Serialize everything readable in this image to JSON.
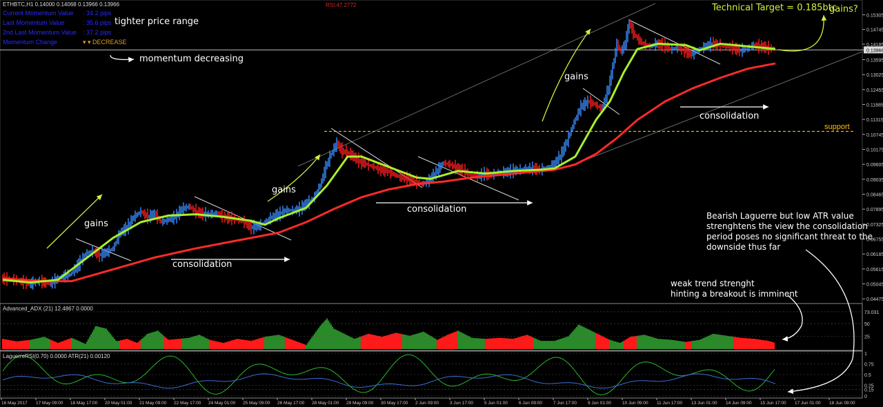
{
  "header": {
    "symbol_line": "ETHBTC,H1  0.14000 0.14068 0.13966 0.13966",
    "rsi_label": "RSI:47.2772"
  },
  "momentum_panel": [
    {
      "label": "Current Momentum Value",
      "value": ": 34.2 pips"
    },
    {
      "label": "Last Momentum Value",
      "value": ": 35.6 pips"
    },
    {
      "label": "2nd Last Momentum Value",
      "value": ": 37.2 pips"
    },
    {
      "label": "Momentum Change",
      "value": "▾ ▾  DECREASE"
    }
  ],
  "annotations": {
    "tighter_range": "tighter price range",
    "momentum_decreasing": "momentum decreasing",
    "gains_1": "gains",
    "gains_2": "gains",
    "gains_3": "gains",
    "gains_q": "gains?",
    "consolidation_1": "consolidation",
    "consolidation_2": "consolidation",
    "consolidation_3": "consolidation",
    "support": "support",
    "technical_target": "Technical Target = 0.185btc",
    "bearish_note_1": "Bearish Laguerre but low ATR value",
    "bearish_note_2": "strenghtens the view the consolidation",
    "bearish_note_3": "period poses no significant threat to the",
    "bearish_note_4": "downside thus far",
    "weak_trend_1": "weak trend strenght",
    "weak_trend_2": "hinting a breakout is imminent"
  },
  "colors": {
    "background": "#000000",
    "candle_up": "#3a8cff",
    "candle_down": "#ff2020",
    "fast_ma": "#a8f02c",
    "slow_ma": "#ff2a2a",
    "annotation_yellow": "#d8f03a",
    "support_line": "#ffc000",
    "adx_bull": "#2a8a2a",
    "adx_bear": "#ff1a1a",
    "laguerre": "#2ab82a",
    "atr": "#3a6fd8"
  },
  "chart_data": [
    {
      "type": "line",
      "title": "ETHBTC,H1",
      "price_ticks": [
        "0.15305",
        "0.14745",
        "0.14185",
        "0.13966",
        "0.13595",
        "0.13025",
        "0.12455",
        "0.11885",
        "0.11315",
        "0.10745",
        "0.10175",
        "0.09605",
        "0.09035",
        "0.08465",
        "0.07895",
        "0.07325",
        "0.06755",
        "0.06185",
        "0.05615",
        "0.05045",
        "0.04475"
      ],
      "ylim": [
        0.0435,
        0.155
      ],
      "current_price": 0.13966,
      "support_level": 0.1086,
      "x_labels": [
        "16 May 2017",
        "17 May 09:00",
        "18 May 17:00",
        "20 May 01:00",
        "21 May 09:00",
        "22 May 17:00",
        "24 May 01:00",
        "25 May 09:00",
        "26 May 17:00",
        "28 May 01:00",
        "29 May 09:00",
        "30 May 17:00",
        "2 Jun 09:00",
        "3 Jun 17:00",
        "5 Jun 01:00",
        "6 Jun 09:00",
        "7 Jun 17:00",
        "9 Jun 01:00",
        "10 Jun 09:00",
        "11 Jun 17:00",
        "13 Jun 01:00",
        "14 Jun 09:00",
        "15 Jun 17:00",
        "17 Jun 01:00",
        "18 Jun 09:00"
      ],
      "series": [
        {
          "name": "price",
          "x": [
            0,
            20,
            40,
            55,
            70,
            85,
            100,
            112,
            122,
            132,
            142,
            152,
            162,
            172,
            182,
            192,
            202,
            212,
            222,
            232,
            242,
            252,
            262,
            272,
            282,
            292,
            302,
            312,
            322,
            332,
            342,
            352,
            362,
            372,
            382,
            392,
            402,
            412,
            422,
            432,
            442,
            452,
            462,
            470,
            478,
            486,
            494,
            502,
            510,
            520,
            530,
            540,
            550,
            560,
            570,
            580,
            590,
            600,
            610,
            620,
            630,
            640,
            650,
            660,
            670,
            680,
            690,
            700,
            710,
            720,
            730,
            740,
            750,
            760,
            770,
            780,
            790,
            800,
            810,
            820,
            830,
            840,
            850,
            860,
            870,
            880,
            886,
            892,
            898,
            904,
            910,
            916,
            922,
            930,
            940,
            950,
            960,
            970,
            980,
            990,
            1000,
            1010,
            1020,
            1030,
            1040,
            1050,
            1060,
            1070,
            1080,
            1090,
            1100,
            1110,
            1120
          ],
          "values": [
            0.0525,
            0.052,
            0.0505,
            0.0515,
            0.0505,
            0.053,
            0.054,
            0.058,
            0.062,
            0.063,
            0.0615,
            0.0625,
            0.064,
            0.07,
            0.072,
            0.076,
            0.078,
            0.076,
            0.077,
            0.074,
            0.075,
            0.076,
            0.079,
            0.08,
            0.078,
            0.077,
            0.077,
            0.0775,
            0.076,
            0.0755,
            0.075,
            0.074,
            0.072,
            0.0725,
            0.074,
            0.076,
            0.077,
            0.0785,
            0.0785,
            0.079,
            0.081,
            0.083,
            0.088,
            0.095,
            0.1,
            0.104,
            0.101,
            0.1005,
            0.099,
            0.097,
            0.096,
            0.095,
            0.094,
            0.0935,
            0.092,
            0.091,
            0.0905,
            0.0895,
            0.0885,
            0.09,
            0.093,
            0.0965,
            0.096,
            0.0945,
            0.0935,
            0.092,
            0.0915,
            0.0925,
            0.092,
            0.093,
            0.093,
            0.0935,
            0.094,
            0.0945,
            0.0945,
            0.094,
            0.0945,
            0.096,
            0.099,
            0.105,
            0.112,
            0.118,
            0.12,
            0.119,
            0.117,
            0.125,
            0.133,
            0.142,
            0.139,
            0.142,
            0.15,
            0.146,
            0.144,
            0.142,
            0.141,
            0.142,
            0.1415,
            0.14,
            0.1405,
            0.1395,
            0.138,
            0.1395,
            0.141,
            0.142,
            0.1415,
            0.141,
            0.1405,
            0.1395,
            0.14,
            0.1415,
            0.141,
            0.1405,
            0.14
          ]
        },
        {
          "name": "fast_ma",
          "x": [
            0,
            40,
            80,
            120,
            160,
            200,
            240,
            280,
            320,
            360,
            380,
            400,
            440,
            470,
            500,
            520,
            560,
            600,
            620,
            660,
            700,
            740,
            780,
            800,
            830,
            860,
            880,
            900,
            920,
            950,
            990,
            1010,
            1040,
            1080,
            1120
          ],
          "values": [
            0.052,
            0.051,
            0.052,
            0.06,
            0.068,
            0.074,
            0.0765,
            0.077,
            0.076,
            0.0745,
            0.073,
            0.0755,
            0.0795,
            0.088,
            0.099,
            0.099,
            0.095,
            0.091,
            0.0905,
            0.0935,
            0.0925,
            0.0935,
            0.094,
            0.0945,
            0.099,
            0.113,
            0.12,
            0.131,
            0.14,
            0.142,
            0.1415,
            0.1395,
            0.142,
            0.141,
            0.14
          ]
        },
        {
          "name": "slow_ma",
          "x": [
            0,
            60,
            100,
            160,
            220,
            280,
            340,
            400,
            440,
            480,
            520,
            560,
            600,
            640,
            680,
            720,
            760,
            800,
            830,
            860,
            890,
            920,
            960,
            1000,
            1040,
            1080,
            1120
          ],
          "values": [
            0.0525,
            0.0515,
            0.0515,
            0.056,
            0.0605,
            0.064,
            0.067,
            0.07,
            0.074,
            0.079,
            0.0835,
            0.0865,
            0.0885,
            0.0895,
            0.091,
            0.092,
            0.093,
            0.094,
            0.096,
            0.1,
            0.106,
            0.113,
            0.12,
            0.125,
            0.129,
            0.1325,
            0.1345
          ]
        }
      ]
    },
    {
      "type": "area",
      "title": "Advanced_ADX (21) 12.4867 0.0000",
      "y_ticks": [
        "73.031",
        "50",
        "25"
      ],
      "ylim": [
        0,
        73
      ],
      "series": [
        {
          "name": "adx",
          "x": [
            0,
            20,
            40,
            60,
            80,
            100,
            120,
            135,
            150,
            165,
            180,
            195,
            210,
            225,
            240,
            255,
            270,
            285,
            300,
            320,
            340,
            360,
            380,
            400,
            420,
            440,
            460,
            470,
            480,
            495,
            510,
            530,
            550,
            570,
            590,
            610,
            630,
            645,
            660,
            680,
            700,
            720,
            740,
            760,
            780,
            800,
            820,
            835,
            850,
            865,
            880,
            895,
            910,
            930,
            950,
            970,
            990,
            1010,
            1030,
            1050,
            1070,
            1090,
            1110,
            1120
          ],
          "values": [
            20,
            15,
            18,
            24,
            12,
            22,
            10,
            45,
            40,
            15,
            20,
            12,
            30,
            36,
            18,
            20,
            22,
            28,
            18,
            12,
            20,
            16,
            24,
            28,
            18,
            8,
            45,
            60,
            40,
            30,
            20,
            30,
            24,
            32,
            26,
            34,
            18,
            28,
            36,
            22,
            20,
            22,
            20,
            28,
            16,
            16,
            25,
            48,
            38,
            28,
            18,
            12,
            24,
            28,
            20,
            18,
            14,
            18,
            30,
            26,
            22,
            20,
            16,
            12
          ],
          "bull_segments": [
            [
              40,
              70
            ],
            [
              100,
              170
            ],
            [
              200,
              235
            ],
            [
              260,
              300
            ],
            [
              380,
              410
            ],
            [
              440,
              520
            ],
            [
              580,
              630
            ],
            [
              660,
              700
            ],
            [
              770,
              860
            ],
            [
              880,
              900
            ],
            [
              920,
              990
            ],
            [
              1000,
              1060
            ]
          ]
        }
      ]
    },
    {
      "type": "line",
      "title": "LaguerreRSI(0.70) 0.0000  ATR(21) 0.00120",
      "y_ticks": [
        "1",
        "0.75",
        "0.5",
        "0.25",
        "0.15",
        "0"
      ],
      "ylim": [
        0,
        1
      ]
    }
  ]
}
